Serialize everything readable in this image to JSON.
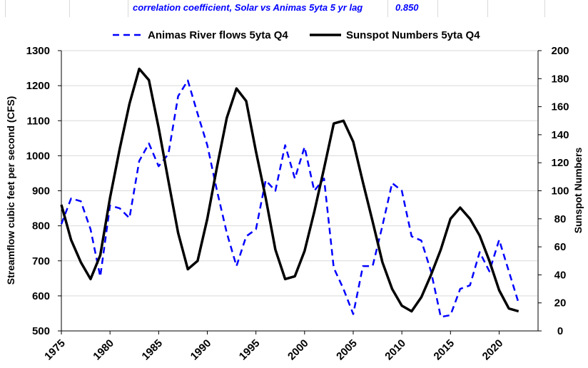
{
  "header": {
    "correlation_label": "correlation coefficient, Solar vs Animas 5yta 5 yr lag",
    "correlation_value": "0.850"
  },
  "colors": {
    "animas": "#0000ff",
    "sunspot": "#000000",
    "grid": "#d9d9d9"
  },
  "chart_data": {
    "type": "line",
    "title": "",
    "xlabel": "",
    "ylabel_left": "Streamflow cubic feet per second (CFS)",
    "ylabel_right": "Sunspot Numbers",
    "legend_placement": "top",
    "xlim": [
      1975,
      2024
    ],
    "xticks": [
      "1975",
      "1980",
      "1985",
      "1990",
      "1995",
      "2000",
      "2005",
      "2010",
      "2015",
      "2020"
    ],
    "ylim_left": [
      500,
      1300
    ],
    "yticks_left": [
      "500",
      "600",
      "700",
      "800",
      "900",
      "1000",
      "1100",
      "1200",
      "1300"
    ],
    "ylim_right": [
      0,
      200
    ],
    "yticks_right": [
      "0",
      "20",
      "40",
      "60",
      "80",
      "100",
      "120",
      "140",
      "160",
      "180",
      "200"
    ],
    "grid": "horizontal",
    "series": [
      {
        "name": "Animas River flows 5yta Q4",
        "axis": "left",
        "style": "dashed",
        "x": [
          1975,
          1976,
          1977,
          1978,
          1979,
          1980,
          1981,
          1982,
          1983,
          1984,
          1985,
          1986,
          1987,
          1988,
          1989,
          1990,
          1991,
          1992,
          1993,
          1994,
          1995,
          1996,
          1997,
          1998,
          1999,
          2000,
          2001,
          2002,
          2003,
          2004,
          2005,
          2006,
          2007,
          2008,
          2009,
          2010,
          2011,
          2012,
          2013,
          2014,
          2015,
          2016,
          2017,
          2018,
          2019,
          2020,
          2021,
          2022
        ],
        "values": [
          805,
          878,
          870,
          790,
          655,
          858,
          850,
          822,
          985,
          1035,
          970,
          1005,
          1170,
          1215,
          1120,
          1030,
          900,
          780,
          685,
          770,
          790,
          930,
          900,
          1030,
          935,
          1025,
          900,
          935,
          680,
          620,
          548,
          685,
          685,
          800,
          922,
          900,
          770,
          758,
          670,
          540,
          545,
          620,
          630,
          725,
          670,
          760,
          670,
          580
        ]
      },
      {
        "name": "Sunspot Numbers 5yta Q4",
        "axis": "right",
        "style": "solid",
        "x": [
          1975,
          1976,
          1977,
          1978,
          1979,
          1980,
          1981,
          1982,
          1983,
          1984,
          1985,
          1986,
          1987,
          1988,
          1989,
          1990,
          1991,
          1992,
          1993,
          1994,
          1995,
          1996,
          1997,
          1998,
          1999,
          2000,
          2001,
          2002,
          2003,
          2004,
          2005,
          2006,
          2007,
          2008,
          2009,
          2010,
          2011,
          2012,
          2013,
          2014,
          2015,
          2016,
          2017,
          2018,
          2019,
          2020,
          2021,
          2022
        ],
        "values": [
          90,
          65,
          49,
          37,
          54,
          95,
          130,
          162,
          187,
          179,
          145,
          107,
          70,
          44,
          50,
          80,
          117,
          152,
          173,
          164,
          128,
          95,
          58,
          37,
          39,
          57,
          85,
          116,
          148,
          150,
          135,
          106,
          78,
          49,
          30,
          18,
          14,
          24,
          40,
          58,
          80,
          88,
          80,
          68,
          50,
          29,
          16,
          14
        ]
      }
    ]
  }
}
